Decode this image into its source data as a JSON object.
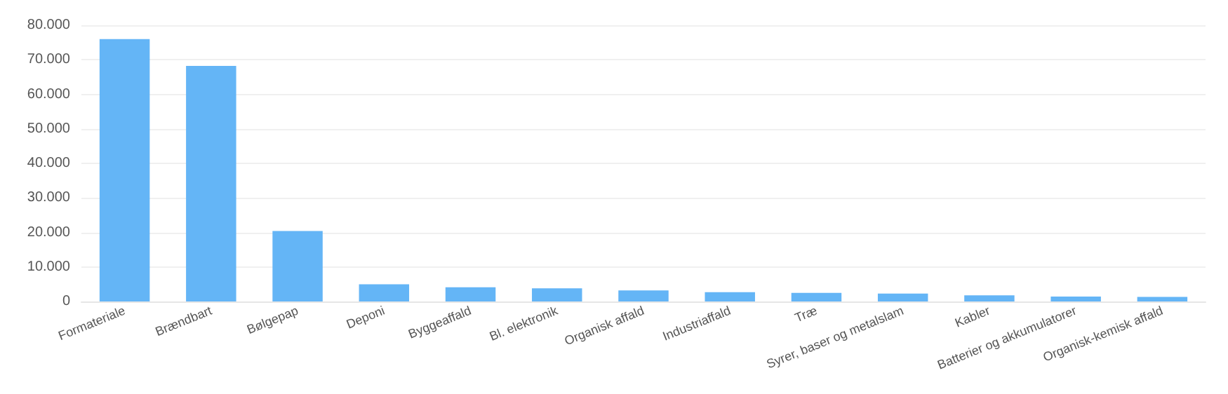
{
  "chart_data": {
    "type": "bar",
    "categories": [
      "Formateriale",
      "Brændbart",
      "Bølgepap",
      "Deponi",
      "Byggeaffald",
      "Bl. elektronik",
      "Organisk affald",
      "Industriaffald",
      "Træ",
      "Syrer, baser og metalslam",
      "Kabler",
      "Batterier og akkumulatorer",
      "Organisk-kemisk affald"
    ],
    "values": [
      76000,
      68200,
      20400,
      5000,
      4100,
      3800,
      3200,
      2700,
      2500,
      2300,
      1800,
      1400,
      1300
    ],
    "color": "#64b5f6",
    "ylim": [
      0,
      80000
    ],
    "yticks": [
      0,
      {
        "value": 10000,
        "label": "10.000"
      },
      {
        "value": 20000,
        "label": "20.000"
      },
      {
        "value": 30000,
        "label": "30.000"
      },
      {
        "value": 40000,
        "label": "40.000"
      },
      {
        "value": 50000,
        "label": "50.000"
      },
      {
        "value": 60000,
        "label": "60.000"
      },
      {
        "value": 70000,
        "label": "70.000"
      },
      {
        "value": 80000,
        "label": "80.000"
      }
    ],
    "grid": "y"
  }
}
